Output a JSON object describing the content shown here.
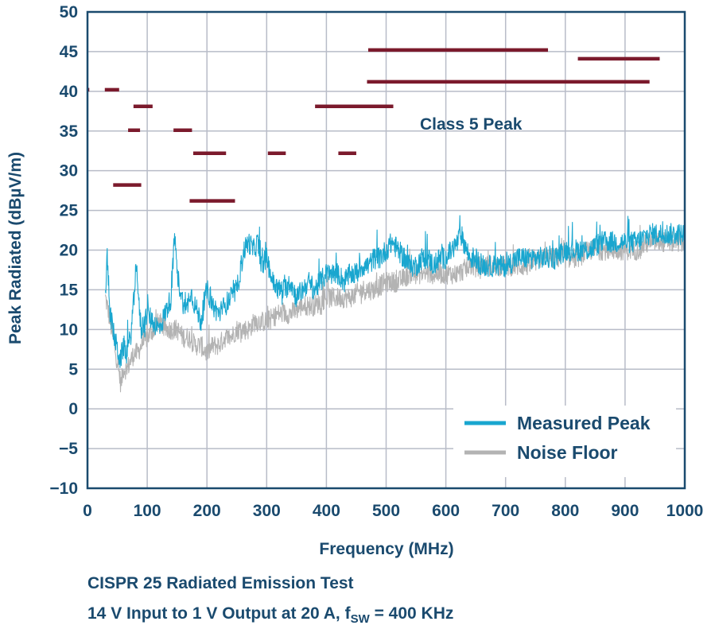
{
  "chart_data": {
    "type": "line",
    "title": "",
    "xlabel": "Frequency (MHz)",
    "ylabel": "Peak Radiated (dBµV/m)",
    "xlim": [
      0,
      1000
    ],
    "ylim": [
      -10,
      50
    ],
    "xticks": [
      "0",
      "100",
      "200",
      "300",
      "400",
      "500",
      "600",
      "700",
      "800",
      "900",
      "1000"
    ],
    "yticks": [
      "50",
      "45",
      "40",
      "35",
      "30",
      "25",
      "20",
      "15",
      "10",
      "5",
      "0",
      "−5",
      "−10"
    ],
    "limit_label": "Class 5 Peak",
    "limit_color": "#7b1a2c",
    "limit_segments": [
      {
        "x1": 0,
        "x2": 3,
        "y": 40.2
      },
      {
        "x1": 29,
        "x2": 53,
        "y": 40.2
      },
      {
        "x1": 77,
        "x2": 109,
        "y": 38.1
      },
      {
        "x1": 68,
        "x2": 88,
        "y": 35.1
      },
      {
        "x1": 144,
        "x2": 175,
        "y": 35.1
      },
      {
        "x1": 177,
        "x2": 232,
        "y": 32.2
      },
      {
        "x1": 302,
        "x2": 332,
        "y": 32.2
      },
      {
        "x1": 420,
        "x2": 450,
        "y": 32.2
      },
      {
        "x1": 43,
        "x2": 90,
        "y": 28.2
      },
      {
        "x1": 171,
        "x2": 247,
        "y": 26.2
      },
      {
        "x1": 381,
        "x2": 512,
        "y": 38.1
      },
      {
        "x1": 470,
        "x2": 771,
        "y": 45.2
      },
      {
        "x1": 468,
        "x2": 941,
        "y": 41.2
      },
      {
        "x1": 821,
        "x2": 958,
        "y": 44.1
      }
    ],
    "series": [
      {
        "name": "Measured Peak",
        "color": "#19a6cf",
        "x": [
          30,
          33,
          38,
          45,
          55,
          60,
          66,
          72,
          78,
          82,
          86,
          90,
          100,
          110,
          120,
          130,
          140,
          146,
          150,
          158,
          165,
          172,
          180,
          190,
          200,
          210,
          220,
          230,
          240,
          250,
          255,
          262,
          270,
          278,
          285,
          292,
          300,
          310,
          320,
          330,
          340,
          350,
          360,
          370,
          380,
          390,
          400,
          410,
          420,
          430,
          440,
          450,
          460,
          470,
          480,
          490,
          500,
          510,
          520,
          530,
          540,
          550,
          560,
          570,
          580,
          590,
          600,
          610,
          620,
          625,
          630,
          640,
          650,
          660,
          680,
          700,
          720,
          740,
          760,
          780,
          800,
          820,
          840,
          860,
          880,
          900,
          920,
          940,
          960,
          980,
          1000
        ],
        "y": [
          14,
          19,
          12,
          9,
          6,
          8,
          7,
          9,
          14,
          19,
          13,
          10,
          12,
          11,
          10,
          12,
          14,
          22,
          17,
          14,
          12,
          15,
          13,
          11,
          15,
          13,
          12,
          13,
          14,
          15,
          17,
          20,
          21,
          20,
          21,
          18,
          19,
          16,
          15,
          15,
          16,
          14,
          15,
          16,
          15,
          16,
          17,
          17,
          17,
          16,
          17,
          17,
          18,
          18,
          19,
          19,
          20,
          21,
          20,
          19,
          18,
          18,
          19,
          19,
          18,
          19,
          19,
          20,
          21,
          22,
          21,
          19,
          19,
          18,
          18,
          18,
          19,
          19,
          19,
          19,
          20,
          20,
          20,
          21,
          21,
          21,
          21,
          22,
          22,
          22,
          22
        ]
      },
      {
        "name": "Noise Floor",
        "color": "#b3b3b3",
        "x": [
          30,
          33,
          38,
          45,
          52,
          56,
          60,
          66,
          72,
          78,
          84,
          90,
          100,
          110,
          120,
          130,
          140,
          150,
          160,
          170,
          180,
          190,
          200,
          210,
          220,
          230,
          240,
          250,
          260,
          270,
          280,
          290,
          300,
          320,
          340,
          360,
          380,
          400,
          420,
          440,
          460,
          480,
          500,
          520,
          540,
          560,
          580,
          600,
          620,
          640,
          660,
          680,
          700,
          720,
          740,
          760,
          780,
          800,
          820,
          840,
          860,
          880,
          900,
          920,
          940,
          960,
          980,
          1000
        ],
        "y": [
          14,
          13,
          11,
          8,
          5,
          3,
          5,
          5,
          6,
          7,
          7,
          8,
          9,
          10,
          11,
          10,
          10,
          10,
          9,
          9,
          8,
          8,
          7,
          8,
          8,
          9,
          9,
          10,
          10,
          10,
          11,
          11,
          11,
          12,
          12,
          13,
          13,
          14,
          14,
          14,
          15,
          15,
          16,
          16,
          17,
          17,
          17,
          17,
          17,
          18,
          18,
          18,
          18,
          18,
          18,
          19,
          19,
          19,
          19,
          20,
          20,
          20,
          20,
          20,
          21,
          21,
          21,
          21
        ]
      }
    ],
    "legend_location": "bottom-right"
  },
  "caption": {
    "line1": "CISPR 25 Radiated Emission Test",
    "line2_pre": "14 V Input to 1 V Output at 20 A, f",
    "line2_sub": "SW",
    "line2_post": " = 400 KHz"
  }
}
